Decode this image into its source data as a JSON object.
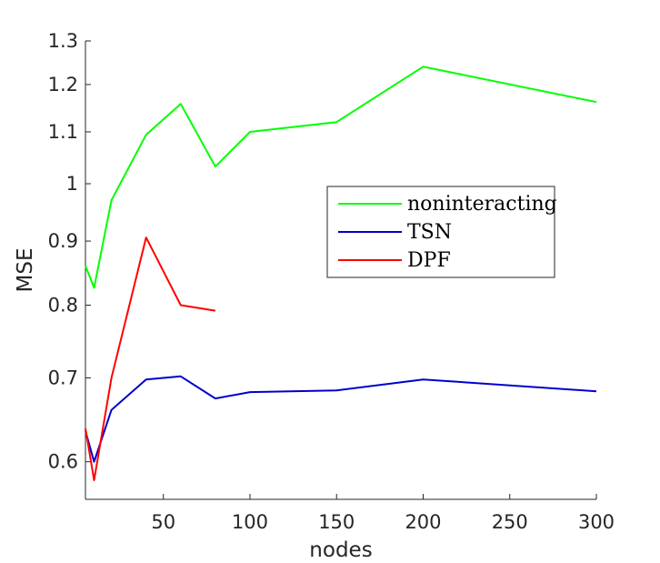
{
  "chart_data": {
    "type": "line",
    "title": "",
    "xlabel": "nodes",
    "ylabel": "MSE",
    "xlim": [
      5,
      300
    ],
    "ylim": [
      0.56,
      1.3
    ],
    "y_scale": "log",
    "x_ticks": [
      50,
      100,
      150,
      200,
      250,
      300
    ],
    "x_tick_labels": [
      "50",
      "100",
      "150",
      "200",
      "250",
      "300"
    ],
    "y_ticks": [
      0.6,
      0.7,
      0.8,
      0.9,
      1.0,
      1.1,
      1.2,
      1.3
    ],
    "y_tick_labels": [
      "0.6",
      "0.7",
      "0.8",
      "0.9",
      "1",
      "1.1",
      "1.2",
      "1.3"
    ],
    "grid": false,
    "legend_position": "right",
    "series": [
      {
        "name": "noninteracting",
        "color": "#00ff00",
        "x": [
          5,
          10,
          20,
          40,
          60,
          80,
          100,
          150,
          200,
          300
        ],
        "y": [
          0.86,
          0.826,
          0.97,
          1.094,
          1.158,
          1.032,
          1.1,
          1.12,
          1.24,
          1.162
        ]
      },
      {
        "name": "TSN",
        "color": "#0000cc",
        "x": [
          5,
          10,
          20,
          40,
          60,
          80,
          100,
          150,
          200,
          300
        ],
        "y": [
          0.635,
          0.6,
          0.66,
          0.698,
          0.702,
          0.674,
          0.682,
          0.684,
          0.698,
          0.683
        ]
      },
      {
        "name": "DPF",
        "color": "#ff0000",
        "x": [
          5,
          10,
          20,
          40,
          60,
          80
        ],
        "y": [
          0.638,
          0.58,
          0.7,
          0.906,
          0.8,
          0.792
        ]
      }
    ]
  }
}
